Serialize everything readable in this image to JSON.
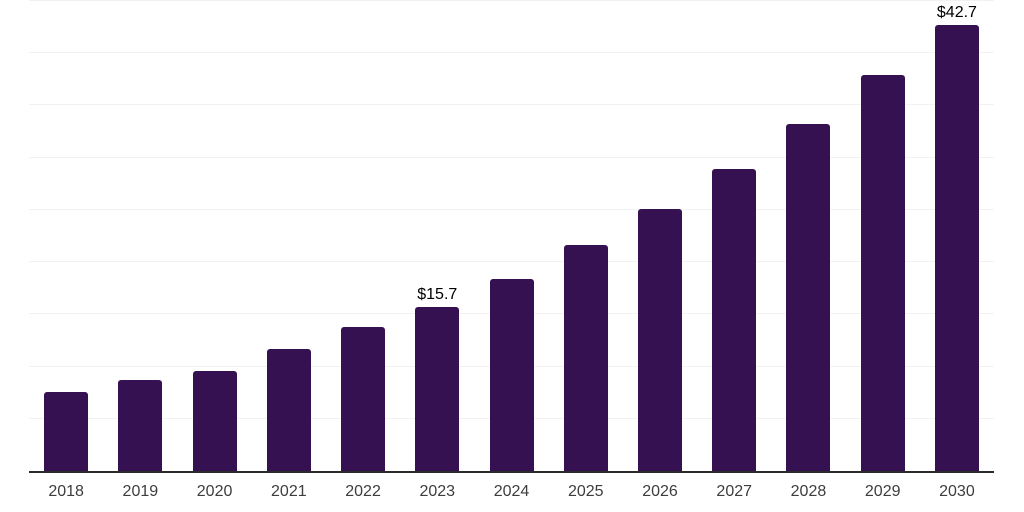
{
  "chart_data": {
    "type": "bar",
    "title": "",
    "categories": [
      "2018",
      "2019",
      "2020",
      "2021",
      "2022",
      "2023",
      "2024",
      "2025",
      "2026",
      "2027",
      "2028",
      "2029",
      "2030"
    ],
    "values": [
      7.6,
      8.7,
      9.6,
      11.7,
      13.8,
      15.7,
      18.4,
      21.6,
      25.1,
      28.9,
      33.2,
      37.9,
      42.7
    ],
    "data_labels": [
      {
        "category": "2023",
        "text": "$15.7"
      },
      {
        "category": "2030",
        "text": "$42.7"
      }
    ],
    "xlabel": "",
    "ylabel": "",
    "ylim": [
      0,
      45
    ],
    "gridline_step": 5,
    "grid": true,
    "legend": false,
    "colors": {
      "bar": "#351151",
      "gridline": "#f2f2f2",
      "axis_line": "#2b2b2b",
      "tick_label": "#3d3d3d",
      "data_label": "#000000",
      "background": "#ffffff"
    }
  }
}
